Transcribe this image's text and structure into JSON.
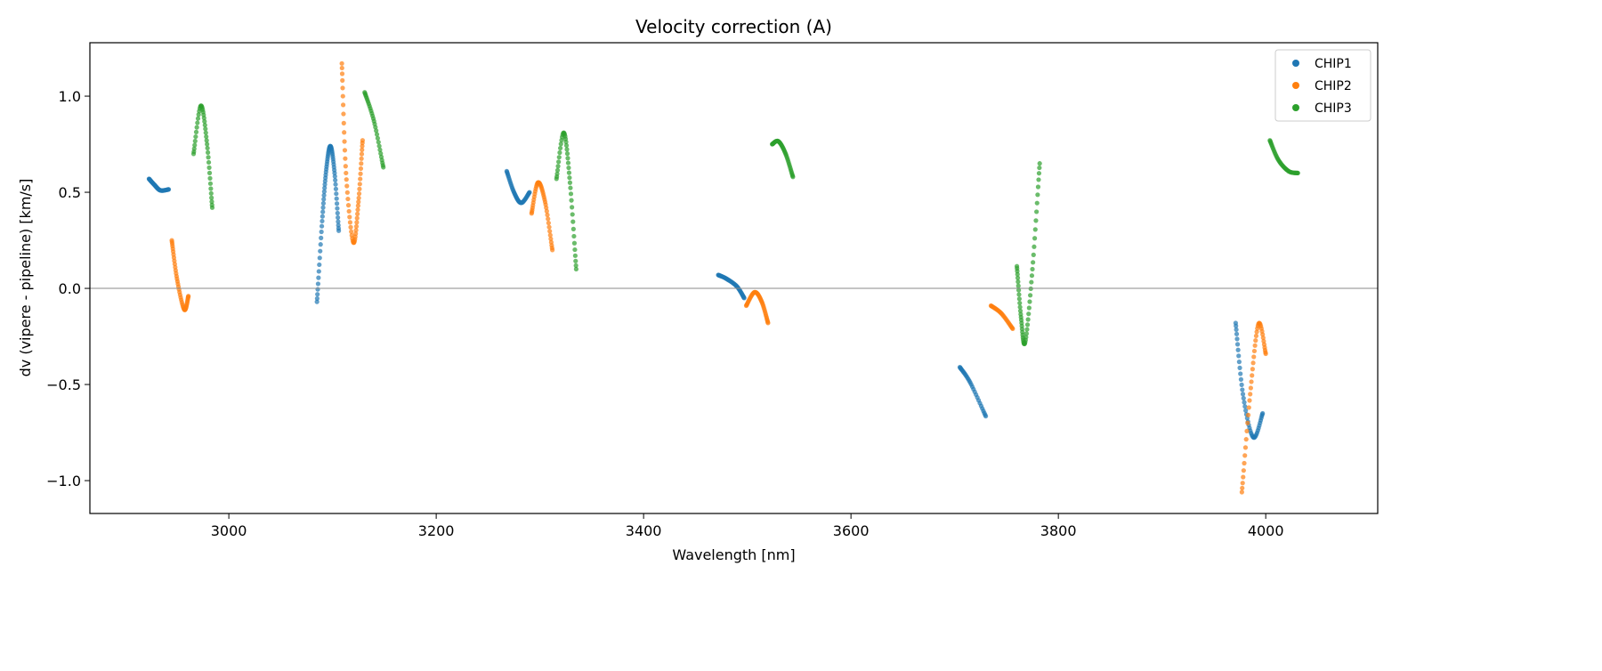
{
  "chart_data": {
    "type": "scatter",
    "title": "Velocity correction (A)",
    "xlabel": "Wavelength [nm]",
    "ylabel": "dv (vipere - pipeline) [km/s]",
    "xlim": [
      2866,
      4108
    ],
    "ylim": [
      -1.171,
      1.278
    ],
    "xticks": [
      3000,
      3200,
      3400,
      3600,
      3800,
      4000
    ],
    "xtick_labels": [
      "3000",
      "3200",
      "3400",
      "3600",
      "3800",
      "4000"
    ],
    "yticks": [
      -1.0,
      -0.5,
      0.0,
      0.5,
      1.0
    ],
    "ytick_labels": [
      "−1.0",
      "−0.5",
      "0.0",
      "0.5",
      "1.0"
    ],
    "hline": 0.0,
    "grid": false,
    "legend_position": "top-right",
    "series": [
      {
        "name": "CHIP1",
        "color": "#1f77b4",
        "segments": [
          [
            [
              2923,
              0.57
            ],
            [
              2928,
              0.54
            ],
            [
              2934,
              0.51
            ],
            [
              2942,
              0.515
            ]
          ],
          [
            [
              3085,
              -0.07
            ],
            [
              3090,
              0.35
            ],
            [
              3094,
              0.62
            ],
            [
              3098,
              0.74
            ],
            [
              3102,
              0.6
            ],
            [
              3106,
              0.3
            ]
          ],
          [
            [
              3268,
              0.61
            ],
            [
              3275,
              0.5
            ],
            [
              3282,
              0.445
            ],
            [
              3290,
              0.5
            ]
          ],
          [
            [
              3472,
              0.07
            ],
            [
              3480,
              0.05
            ],
            [
              3490,
              0.01
            ],
            [
              3497,
              -0.05
            ]
          ],
          [
            [
              3705,
              -0.41
            ],
            [
              3715,
              -0.49
            ],
            [
              3730,
              -0.665
            ]
          ],
          [
            [
              3971,
              -0.18
            ],
            [
              3978,
              -0.55
            ],
            [
              3988,
              -0.775
            ],
            [
              3997,
              -0.65
            ]
          ]
        ]
      },
      {
        "name": "CHIP2",
        "color": "#ff7f0e",
        "segments": [
          [
            [
              2945,
              0.25
            ],
            [
              2950,
              0.05
            ],
            [
              2957,
              -0.11
            ],
            [
              2961,
              -0.04
            ]
          ],
          [
            [
              3109,
              1.17
            ],
            [
              3113,
              0.6
            ],
            [
              3120,
              0.24
            ],
            [
              3125,
              0.45
            ],
            [
              3129,
              0.77
            ]
          ],
          [
            [
              3292,
              0.39
            ],
            [
              3298,
              0.55
            ],
            [
              3305,
              0.45
            ],
            [
              3312,
              0.2
            ]
          ],
          [
            [
              3499,
              -0.09
            ],
            [
              3507,
              -0.02
            ],
            [
              3514,
              -0.07
            ],
            [
              3520,
              -0.18
            ]
          ],
          [
            [
              3735,
              -0.09
            ],
            [
              3745,
              -0.13
            ],
            [
              3756,
              -0.21
            ]
          ],
          [
            [
              3977,
              -1.06
            ],
            [
              3985,
              -0.55
            ],
            [
              3993,
              -0.185
            ],
            [
              4000,
              -0.34
            ]
          ]
        ]
      },
      {
        "name": "CHIP3",
        "color": "#2ca02c",
        "segments": [
          [
            [
              2966,
              0.7
            ],
            [
              2973,
              0.95
            ],
            [
              2979,
              0.75
            ],
            [
              2984,
              0.42
            ]
          ],
          [
            [
              3131,
              1.02
            ],
            [
              3140,
              0.87
            ],
            [
              3149,
              0.63
            ]
          ],
          [
            [
              3316,
              0.57
            ],
            [
              3323,
              0.81
            ],
            [
              3329,
              0.55
            ],
            [
              3335,
              0.1
            ]
          ],
          [
            [
              3524,
              0.75
            ],
            [
              3530,
              0.765
            ],
            [
              3537,
              0.7
            ],
            [
              3544,
              0.58
            ]
          ],
          [
            [
              3760,
              0.115
            ],
            [
              3764,
              -0.15
            ],
            [
              3768,
              -0.28
            ],
            [
              3775,
              0.1
            ],
            [
              3782,
              0.65
            ]
          ],
          [
            [
              4004,
              0.77
            ],
            [
              4012,
              0.67
            ],
            [
              4022,
              0.61
            ],
            [
              4031,
              0.6
            ]
          ]
        ]
      }
    ]
  }
}
